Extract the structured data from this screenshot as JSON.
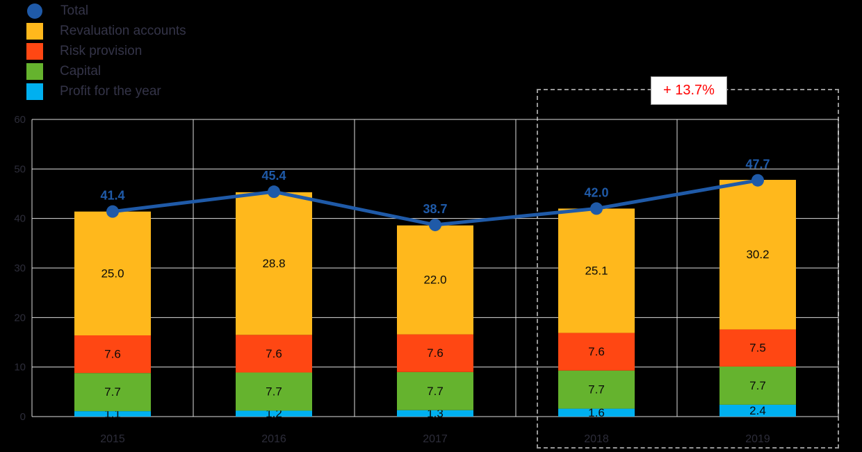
{
  "legend": {
    "items": [
      {
        "label": "Total",
        "color": "#1F5AA8",
        "shape": "circle"
      },
      {
        "label": "Revaluation accounts",
        "color": "#FFB81C",
        "shape": "square"
      },
      {
        "label": "Risk provision",
        "color": "#FF4713",
        "shape": "square"
      },
      {
        "label": "Capital",
        "color": "#65B32E",
        "shape": "square"
      },
      {
        "label": "Profit for the year",
        "color": "#00B0F0",
        "shape": "square"
      }
    ]
  },
  "chart_data": {
    "type": "bar",
    "subtype": "stacked-bars-with-total-line",
    "title": "",
    "xlabel": "",
    "ylabel": "",
    "categories": [
      "2015",
      "2016",
      "2017",
      "2018",
      "2019"
    ],
    "series": [
      {
        "name": "Profit for the year",
        "color": "#00B0F0",
        "values": [
          1.1,
          1.2,
          1.3,
          1.6,
          2.4
        ]
      },
      {
        "name": "Capital",
        "color": "#65B32E",
        "values": [
          7.7,
          7.7,
          7.7,
          7.7,
          7.7
        ]
      },
      {
        "name": "Risk provision",
        "color": "#FF4713",
        "values": [
          7.6,
          7.6,
          7.6,
          7.6,
          7.5
        ]
      },
      {
        "name": "Revaluation accounts",
        "color": "#FFB81C",
        "values": [
          25.0,
          28.8,
          22.0,
          25.1,
          30.2
        ]
      }
    ],
    "line_series": {
      "name": "Total",
      "color": "#1F5AA8",
      "values": [
        41.4,
        45.4,
        38.7,
        42.0,
        47.7
      ]
    },
    "ylim": [
      0,
      60
    ],
    "yticks": [
      0,
      10,
      20,
      30,
      40,
      50,
      60
    ],
    "grid": true,
    "legend_position": "top-left",
    "highlight": {
      "categories": [
        "2018",
        "2019"
      ],
      "label": "+ 13.7%",
      "label_color": "#FF0000"
    }
  }
}
